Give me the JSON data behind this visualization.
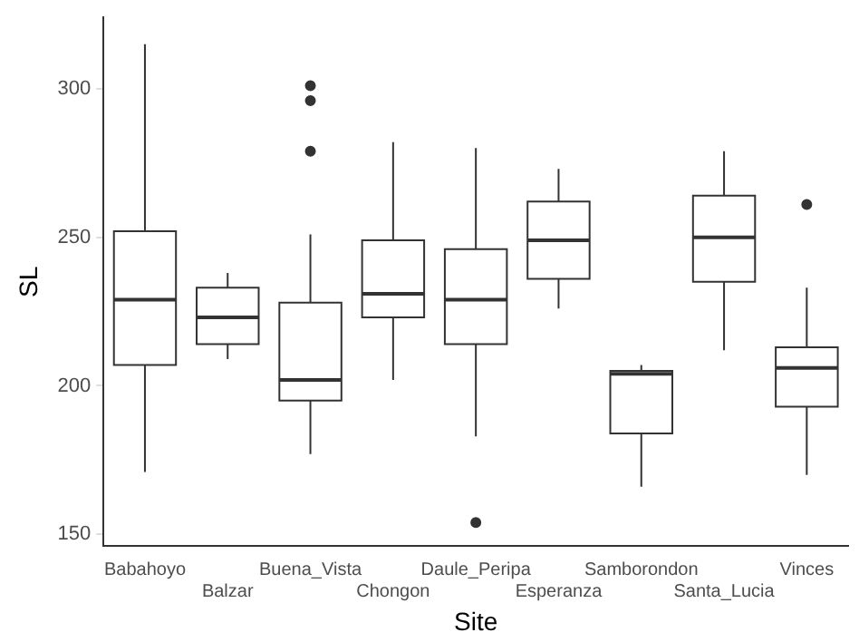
{
  "chart_data": {
    "type": "box",
    "xlabel": "Site",
    "ylabel": "SL",
    "categories": [
      "Babahoyo",
      "Balzar",
      "Buena_Vista",
      "Chongon",
      "Daule_Peripa",
      "Esperanza",
      "Samborondon",
      "Santa_Lucia",
      "Vinces"
    ],
    "color": "#333333",
    "boxes": [
      {
        "low": 171,
        "q1": 207,
        "median": 229,
        "q3": 252,
        "high": 315
      },
      {
        "low": 209,
        "q1": 214,
        "median": 223,
        "q3": 233,
        "high": 238
      },
      {
        "low": 177,
        "q1": 195,
        "median": 202,
        "q3": 228,
        "high": 251,
        "outliers": [
          279,
          296,
          301
        ]
      },
      {
        "low": 202,
        "q1": 223,
        "median": 231,
        "q3": 249,
        "high": 282
      },
      {
        "low": 183,
        "q1": 214,
        "median": 229,
        "q3": 246,
        "high": 280,
        "outliers": [
          154
        ]
      },
      {
        "low": 226,
        "q1": 236,
        "median": 249,
        "q3": 262,
        "high": 273
      },
      {
        "low": 166,
        "q1": 184,
        "median": 204,
        "q3": 205,
        "high": 207
      },
      {
        "low": 212,
        "q1": 235,
        "median": 250,
        "q3": 264,
        "high": 279
      },
      {
        "low": 170,
        "q1": 193,
        "median": 206,
        "q3": 213,
        "high": 233,
        "outliers": [
          261
        ]
      }
    ],
    "ylim": [
      146,
      324
    ],
    "yticks": [
      150,
      200,
      250,
      300
    ],
    "grid": false,
    "legend": false
  }
}
